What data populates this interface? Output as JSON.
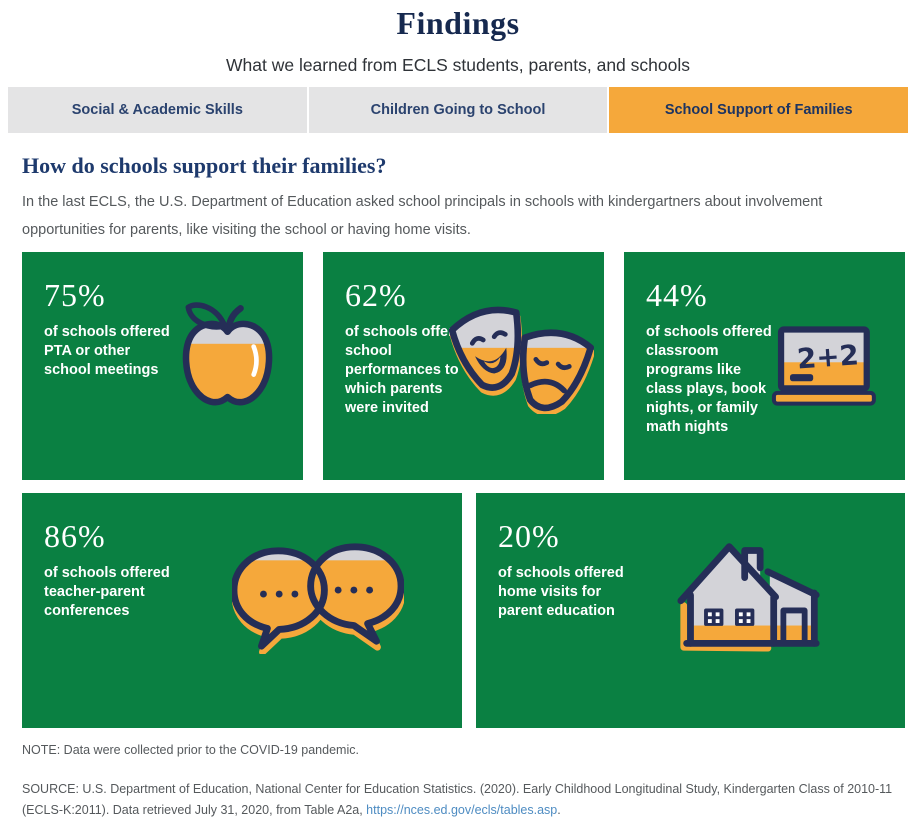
{
  "theme": {
    "green": "#0a8042",
    "orange": "#f5a83b",
    "icon_navy": "#252e57",
    "icon_gray": "#d3d3d8",
    "navy_title": "#16294f",
    "navy_heading": "#1e3a6d",
    "tab_text": "#2b436f",
    "tab_gray": "#e4e4e5",
    "body_gray": "#55595c",
    "link_blue": "#4e8cc2",
    "white": "#ffffff"
  },
  "header": {
    "title": "Findings",
    "subtitle": "What we learned from ECLS students, parents, and schools"
  },
  "tabs": [
    {
      "label": "Social & Academic Skills",
      "active": false
    },
    {
      "label": "Children Going to School",
      "active": false
    },
    {
      "label": "School Support of Families",
      "active": true
    }
  ],
  "section": {
    "heading": "How do schools support their families?",
    "intro": "In the last ECLS, the U.S. Department of Education asked school principals in schools with kindergartners about involvement opportunities for parents, like visiting the school or having home visits."
  },
  "cards": [
    {
      "percent": "75%",
      "value": 75,
      "description": "of schools offered PTA or other school meetings",
      "icon": "apple-icon"
    },
    {
      "percent": "62%",
      "value": 62,
      "description": "of schools offered school performances to which parents were invited",
      "icon": "theater-masks-icon"
    },
    {
      "percent": "44%",
      "value": 44,
      "description": "of schools offered classroom programs like class plays, book nights, or family math nights",
      "icon": "chalkboard-icon"
    },
    {
      "percent": "86%",
      "value": 86,
      "description": "of schools offered teacher-parent conferences",
      "icon": "speech-bubbles-icon"
    },
    {
      "percent": "20%",
      "value": 20,
      "description": "of schools offered home visits for parent education",
      "icon": "schoolhouse-icon"
    }
  ],
  "chalkboard_text": "2+2",
  "footer": {
    "note": "NOTE: Data were collected prior to the COVID-19 pandemic.",
    "source_prefix": "SOURCE: U.S. Department of Education, National Center for Education Statistics. (2020). Early Childhood Longitudinal Study, Kindergarten Class of 2010-11 (ECLS-K:2011). Data retrieved July 31, 2020, from Table A2a, ",
    "source_link": "https://nces.ed.gov/ecls/tables.asp",
    "source_suffix": "."
  },
  "chart_data": {
    "type": "bar",
    "subtype": "pictogram-fill",
    "title": "How do schools support their families?",
    "categories": [
      "PTA or other school meetings",
      "School performances to which parents were invited",
      "Classroom programs like class plays, book nights, or family math nights",
      "Teacher-parent conferences",
      "Home visits for parent education"
    ],
    "values": [
      75,
      62,
      44,
      86,
      20
    ],
    "unit": "% of schools",
    "ylim": [
      0,
      100
    ]
  }
}
